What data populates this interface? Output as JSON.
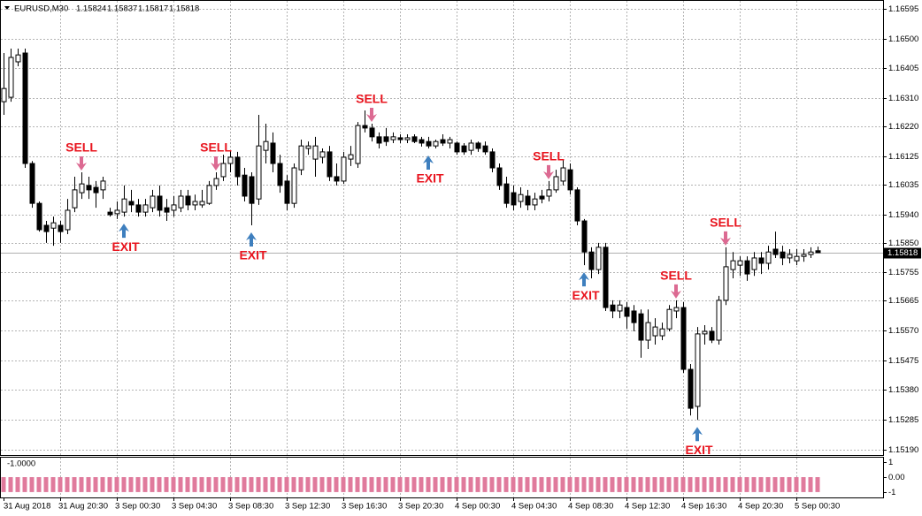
{
  "chart_data": {
    "type": "candlestick",
    "symbol": "EURUSD,M30",
    "x": [
      "31 Aug 2018",
      null,
      null,
      null,
      null,
      null,
      null,
      null,
      "31 Aug 20:30",
      null,
      null,
      null,
      null,
      null,
      null,
      null,
      "3 Sep 00:30",
      null,
      null,
      null,
      null,
      null,
      null,
      null,
      "3 Sep 04:30",
      null,
      null,
      null,
      null,
      null,
      null,
      null,
      "3 Sep 08:30",
      null,
      null,
      null,
      null,
      null,
      null,
      null,
      "3 Sep 12:30",
      null,
      null,
      null,
      null,
      null,
      null,
      null,
      "3 Sep 16:30",
      null,
      null,
      null,
      null,
      null,
      null,
      null,
      "3 Sep 20:30",
      null,
      null,
      null,
      null,
      null,
      null,
      null,
      "4 Sep 00:30",
      null,
      null,
      null,
      null,
      null,
      null,
      null,
      "4 Sep 04:30",
      null,
      null,
      null,
      null,
      null,
      null,
      null,
      "4 Sep 08:30",
      null,
      null,
      null,
      null,
      null,
      null,
      null,
      "4 Sep 12:30",
      null,
      null,
      null,
      null,
      null,
      null,
      null,
      "4 Sep 16:30",
      null,
      null,
      null,
      null,
      null,
      null,
      null,
      "4 Sep 20:30",
      null,
      null,
      null,
      null,
      null,
      null,
      null,
      "5 Sep 00:30",
      null,
      null,
      null
    ],
    "open": [
      1.16299,
      1.16313,
      1.16426,
      1.16454,
      1.16102,
      1.15975,
      1.15905,
      1.15896,
      1.15905,
      1.15891,
      1.15961,
      1.16009,
      1.16032,
      1.16026,
      1.16018,
      1.15947,
      1.15942,
      1.15947,
      1.15981,
      1.1597,
      1.15947,
      1.15961,
      1.15998,
      1.15961,
      1.15953,
      1.15961,
      1.15998,
      1.1597,
      1.1597,
      1.15975,
      1.16032,
      1.1606,
      1.16102,
      1.16122,
      1.16065,
      1.1606,
      1.15989,
      1.16144,
      1.16167,
      1.16102,
      1.16046,
      1.15975,
      1.16082,
      1.1615,
      1.16116,
      1.16122,
      1.16139,
      1.1606,
      1.16046,
      1.16116,
      1.16102,
      1.16223,
      1.16215,
      1.16187,
      1.16187,
      1.16178,
      1.16184,
      1.16178,
      1.16187,
      1.16178,
      1.16172,
      1.16158,
      1.16178,
      1.16167,
      1.16167,
      1.16158,
      1.16144,
      1.16167,
      1.16158,
      1.16139,
      1.16088,
      1.16037,
      1.16009,
      1.15981,
      1.15998,
      1.1597,
      1.15998,
      1.15998,
      1.16018,
      1.16046,
      1.16082,
      1.16018,
      1.15919,
      1.1582,
      1.15764,
      1.15835,
      1.15651,
      1.15632,
      1.15643,
      1.15632,
      1.15623,
      1.15539,
      1.15553,
      1.15553,
      1.15575,
      1.15632,
      1.15643,
      1.15446,
      1.15328,
      1.15559,
      1.15567,
      1.15539,
      1.15666,
      1.15764,
      1.15778,
      1.15792,
      1.15764,
      1.15801,
      1.15784,
      1.15829,
      1.1582,
      1.15801,
      1.15792,
      1.15806,
      1.15812,
      1.15824
    ],
    "high": [
      1.16454,
      1.16468,
      1.16468,
      1.16468,
      1.1611,
      1.15981,
      1.15919,
      1.15933,
      1.15919,
      1.15989,
      1.1606,
      1.16074,
      1.1606,
      1.16046,
      1.1606,
      1.15961,
      1.15981,
      1.16032,
      1.16018,
      1.15989,
      1.15989,
      1.16018,
      1.16032,
      1.15989,
      1.15998,
      1.16018,
      1.16018,
      1.16003,
      1.16018,
      1.16046,
      1.16074,
      1.1613,
      1.16144,
      1.16139,
      1.16088,
      1.16074,
      1.16257,
      1.16229,
      1.16201,
      1.1613,
      1.16065,
      1.16102,
      1.16178,
      1.16172,
      1.16187,
      1.1615,
      1.16158,
      1.16102,
      1.16139,
      1.16158,
      1.16234,
      1.16271,
      1.16229,
      1.16201,
      1.16215,
      1.16201,
      1.16195,
      1.16195,
      1.16195,
      1.16187,
      1.16187,
      1.16178,
      1.16195,
      1.16187,
      1.16172,
      1.16167,
      1.16178,
      1.16172,
      1.16172,
      1.1615,
      1.16102,
      1.1606,
      1.16032,
      1.16026,
      1.16018,
      1.16009,
      1.16018,
      1.16046,
      1.16082,
      1.16116,
      1.16102,
      1.16026,
      1.15925,
      1.15835,
      1.15849,
      1.15849,
      1.15666,
      1.15666,
      1.1566,
      1.15651,
      1.15637,
      1.15637,
      1.15609,
      1.15595,
      1.15651,
      1.15666,
      1.1566,
      1.15463,
      1.15581,
      1.15587,
      1.15581,
      1.1568,
      1.15835,
      1.1582,
      1.15806,
      1.15806,
      1.1582,
      1.1582,
      1.1584,
      1.15885,
      1.1584,
      1.15829,
      1.15829,
      1.15829,
      1.15835,
      1.15837
    ],
    "low": [
      1.16257,
      1.16299,
      1.16412,
      1.16088,
      1.15961,
      1.15885,
      1.15849,
      1.1584,
      1.15849,
      1.15877,
      1.15947,
      1.15989,
      1.15989,
      1.15961,
      1.15989,
      1.15933,
      1.15925,
      1.15933,
      1.15947,
      1.15933,
      1.15933,
      1.15947,
      1.15933,
      1.15919,
      1.15933,
      1.15947,
      1.15953,
      1.15953,
      1.15961,
      1.1597,
      1.16018,
      1.16046,
      1.16074,
      1.16032,
      1.15981,
      1.15905,
      1.1597,
      1.16102,
      1.16074,
      1.16009,
      1.15953,
      1.15961,
      1.16065,
      1.1613,
      1.1606,
      1.16102,
      1.16046,
      1.16032,
      1.16037,
      1.16094,
      1.16088,
      1.16201,
      1.16172,
      1.1615,
      1.16158,
      1.16167,
      1.16167,
      1.16167,
      1.16167,
      1.16156,
      1.1615,
      1.1615,
      1.16158,
      1.1615,
      1.1613,
      1.1613,
      1.1613,
      1.16139,
      1.1613,
      1.16074,
      1.16018,
      1.15961,
      1.15953,
      1.15961,
      1.15953,
      1.15953,
      1.15975,
      1.15981,
      1.16009,
      1.16032,
      1.16003,
      1.15905,
      1.15778,
      1.15736,
      1.1575,
      1.15632,
      1.15609,
      1.15609,
      1.15575,
      1.15567,
      1.15483,
      1.15511,
      1.15525,
      1.15539,
      1.15567,
      1.15609,
      1.15435,
      1.15299,
      1.15285,
      1.15525,
      1.1553,
      1.15525,
      1.15651,
      1.15736,
      1.15744,
      1.15728,
      1.15744,
      1.1575,
      1.15764,
      1.15801,
      1.15778,
      1.15784,
      1.15778,
      1.15789,
      1.15801,
      1.15817
    ],
    "close": [
      1.16341,
      1.1644,
      1.16448,
      1.16102,
      1.15975,
      1.15891,
      1.15885,
      1.15913,
      1.15885,
      1.15953,
      1.16018,
      1.16037,
      1.16018,
      1.16009,
      1.16046,
      1.15939,
      1.15953,
      1.15989,
      1.1597,
      1.15947,
      1.1597,
      1.15998,
      1.15953,
      1.15947,
      1.1597,
      1.15998,
      1.1597,
      1.15981,
      1.15981,
      1.16032,
      1.16054,
      1.16102,
      1.16122,
      1.1606,
      1.15998,
      1.15975,
      1.16158,
      1.16172,
      1.16102,
      1.16032,
      1.15975,
      1.16088,
      1.16158,
      1.16158,
      1.16158,
      1.16139,
      1.1606,
      1.16046,
      1.16122,
      1.1613,
      1.16223,
      1.16215,
      1.16187,
      1.16167,
      1.16172,
      1.16187,
      1.16178,
      1.16184,
      1.16172,
      1.16167,
      1.16158,
      1.16172,
      1.16167,
      1.16178,
      1.16139,
      1.16139,
      1.16167,
      1.1615,
      1.16139,
      1.16088,
      1.16032,
      1.15975,
      1.1597,
      1.16003,
      1.1597,
      1.15989,
      1.15989,
      1.16018,
      1.1606,
      1.16088,
      1.16018,
      1.15919,
      1.1582,
      1.15764,
      1.15835,
      1.15643,
      1.15632,
      1.15651,
      1.15615,
      1.15595,
      1.15539,
      1.15595,
      1.15581,
      1.15575,
      1.15637,
      1.15643,
      1.15446,
      1.15322,
      1.15559,
      1.15567,
      1.15539,
      1.15666,
      1.15773,
      1.15792,
      1.15792,
      1.1575,
      1.15801,
      1.15784,
      1.1582,
      1.15812,
      1.15801,
      1.15812,
      1.15806,
      1.15812,
      1.1582,
      1.15818
    ],
    "signals": [
      null,
      null,
      null,
      null,
      null,
      null,
      null,
      null,
      null,
      null,
      null,
      "SELL",
      null,
      null,
      null,
      null,
      null,
      "EXIT",
      null,
      null,
      null,
      null,
      null,
      null,
      null,
      null,
      null,
      null,
      null,
      null,
      "SELL",
      null,
      null,
      null,
      null,
      "EXIT",
      null,
      null,
      null,
      null,
      null,
      null,
      null,
      null,
      null,
      null,
      null,
      null,
      null,
      null,
      null,
      null,
      "SELL",
      null,
      null,
      null,
      null,
      null,
      null,
      null,
      "EXIT",
      null,
      null,
      null,
      null,
      null,
      null,
      null,
      null,
      null,
      null,
      null,
      null,
      null,
      null,
      null,
      null,
      "SELL",
      null,
      null,
      null,
      null,
      "EXIT",
      null,
      null,
      null,
      null,
      null,
      null,
      null,
      null,
      null,
      null,
      null,
      null,
      "SELL",
      null,
      null,
      "EXIT",
      null,
      null,
      null,
      "SELL",
      null,
      null,
      null,
      null,
      null,
      null,
      null,
      null,
      null,
      null,
      null,
      null,
      null
    ],
    "signal_colors": {
      "SELL": "#dc6a92",
      "EXIT": "#3e7fbe"
    },
    "signal_directions": {
      "SELL": "down",
      "EXIT": "up"
    },
    "signal_text_color": "#e8141e",
    "up_color": "#ffffff",
    "down_color": "#000000",
    "ylim": [
      1.15173,
      1.16623
    ],
    "yticks": [
      1.16595,
      {
        "value": 1.165,
        "label": "1.16500"
      },
      1.16405,
      {
        "value": 1.1631,
        "label": "1.16310"
      },
      {
        "value": 1.1622,
        "label": "1.16220"
      },
      1.16125,
      1.16035,
      {
        "value": 1.1594,
        "label": "1.15940"
      },
      {
        "value": 1.1585,
        "label": "1.15850"
      },
      1.15755,
      1.15665,
      {
        "value": 1.1557,
        "label": "1.15570"
      },
      1.15475,
      {
        "value": 1.1538,
        "label": "1.15380"
      },
      1.15285,
      {
        "value": 1.1519,
        "label": "1.15190"
      }
    ],
    "grid": true,
    "indicator": {
      "label": "-1.0000",
      "color": "#e07a9c",
      "ylim": [
        -1.36,
        1.36
      ],
      "yticks": [
        1,
        {
          "value": 0,
          "label": "0.00"
        },
        -1
      ],
      "values": [
        -1,
        -1,
        -1,
        -1,
        -1,
        -1,
        -1,
        -1,
        -1,
        -1,
        -1,
        -1,
        -1,
        -1,
        -1,
        -1,
        -1,
        -1,
        -1,
        -1,
        -1,
        -1,
        -1,
        -1,
        -1,
        -1,
        -1,
        -1,
        -1,
        -1,
        -1,
        -1,
        -1,
        -1,
        -1,
        -1,
        -1,
        -1,
        -1,
        -1,
        -1,
        -1,
        -1,
        -1,
        -1,
        -1,
        -1,
        -1,
        -1,
        -1,
        -1,
        -1,
        -1,
        -1,
        -1,
        -1,
        -1,
        -1,
        -1,
        -1,
        -1,
        -1,
        -1,
        -1,
        -1,
        -1,
        -1,
        -1,
        -1,
        -1,
        -1,
        -1,
        -1,
        -1,
        -1,
        -1,
        -1,
        -1,
        -1,
        -1,
        -1,
        -1,
        -1,
        -1,
        -1,
        -1,
        -1,
        -1,
        -1,
        -1,
        -1,
        -1,
        -1,
        -1,
        -1,
        -1,
        -1,
        -1,
        -1,
        -1,
        -1,
        -1,
        -1,
        -1,
        -1,
        -1,
        -1,
        -1,
        -1,
        -1,
        -1,
        -1,
        -1,
        -1,
        -1,
        -1
      ]
    }
  }
}
